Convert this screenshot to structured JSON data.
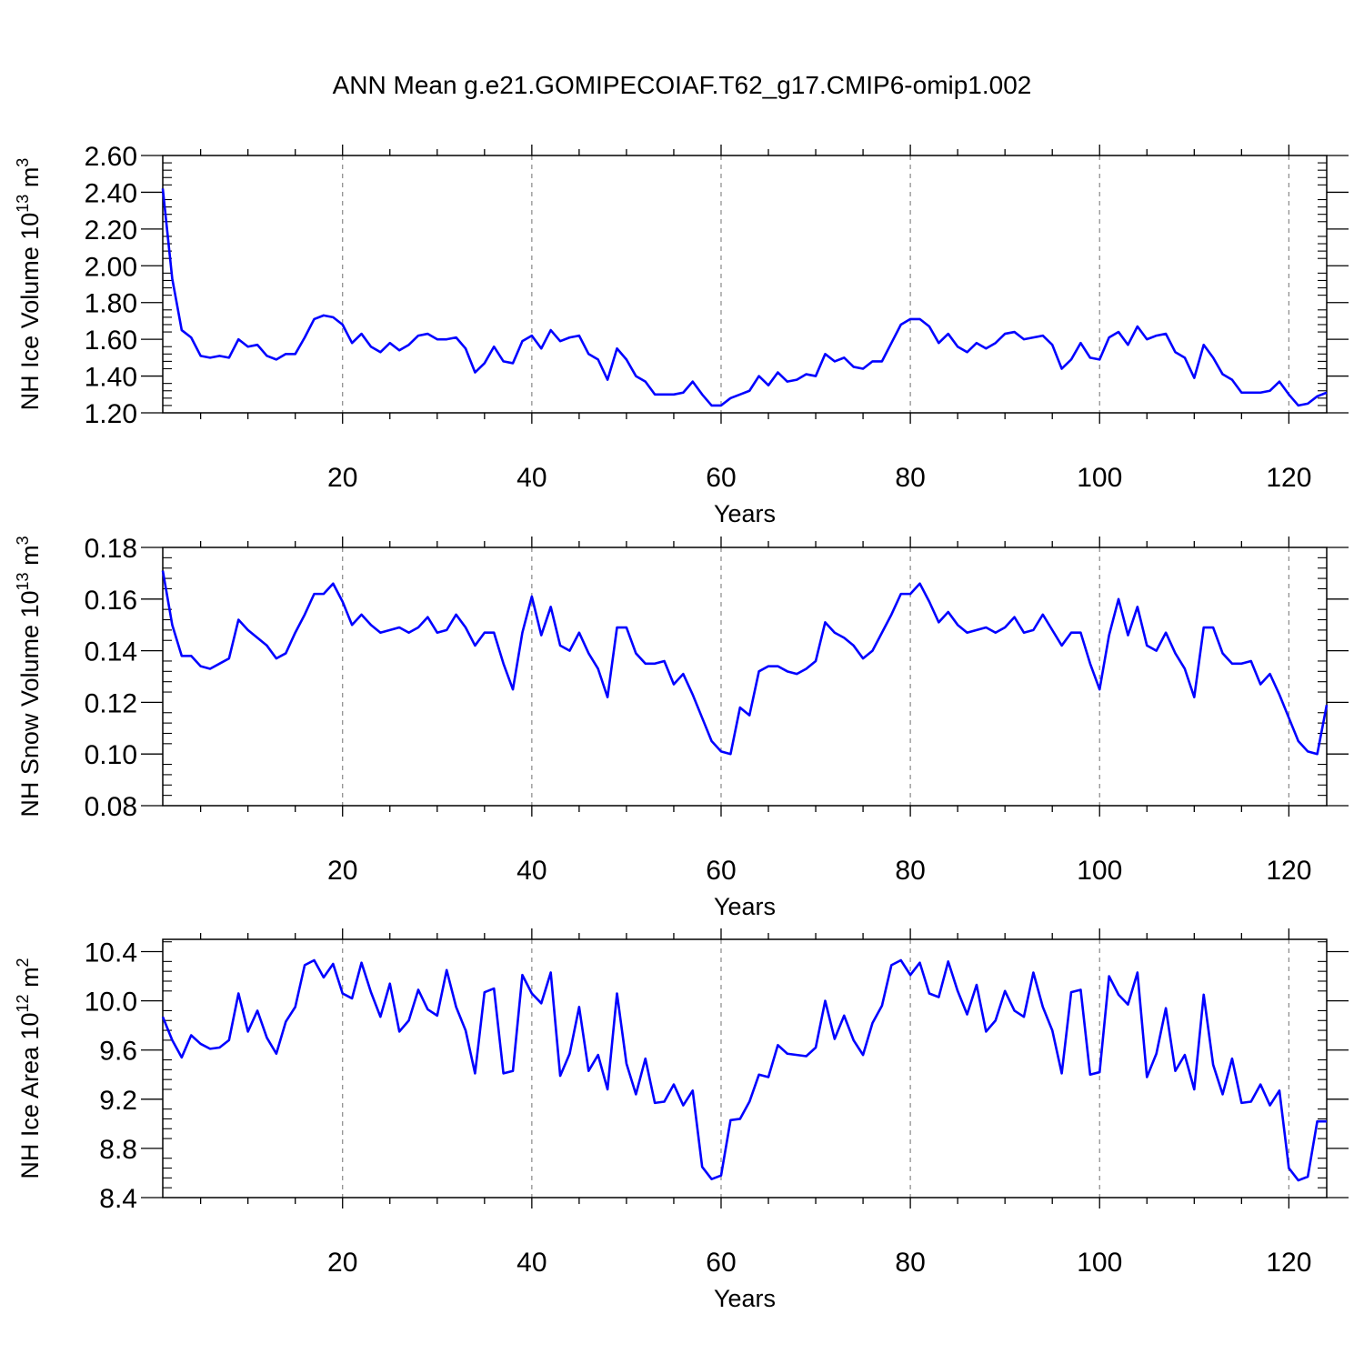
{
  "title": "ANN Mean g.e21.GOMIPECOIAF.T62_g17.CMIP6-omip1.002",
  "colors": {
    "line": "#0000ff",
    "axis": "#000000",
    "grid": "#888888"
  },
  "chart_data": [
    {
      "type": "line",
      "ylabel": "NH Ice Volume",
      "units_base": "10",
      "units_exp": "13",
      "units_unit": "m",
      "units_unit_exp": "3",
      "xlabel": "Years",
      "xlim": [
        1,
        124
      ],
      "ylim": [
        1.2,
        2.6
      ],
      "yticks": [
        "1.20",
        "1.40",
        "1.60",
        "1.80",
        "2.00",
        "2.20",
        "2.40",
        "2.60"
      ],
      "xticks": [
        "20",
        "40",
        "60",
        "80",
        "100",
        "120"
      ],
      "grid": "vertical dashed at x ticks",
      "series": [
        {
          "values": [
            2.42,
            1.93,
            1.65,
            1.61,
            1.51,
            1.5,
            1.51,
            1.5,
            1.6,
            1.56,
            1.57,
            1.51,
            1.49,
            1.52,
            1.52,
            1.61,
            1.71,
            1.73,
            1.72,
            1.68,
            1.58,
            1.63,
            1.56,
            1.53,
            1.58,
            1.54,
            1.57,
            1.62,
            1.63,
            1.6,
            1.6,
            1.61,
            1.55,
            1.42,
            1.47,
            1.56,
            1.48,
            1.47,
            1.59,
            1.62,
            1.55,
            1.65,
            1.59,
            1.61,
            1.62,
            1.52,
            1.49,
            1.38,
            1.55,
            1.49,
            1.4,
            1.37,
            1.3,
            1.3,
            1.3,
            1.31,
            1.37,
            1.3,
            1.24,
            1.24,
            1.28,
            1.3,
            1.32,
            1.4,
            1.35,
            1.42,
            1.37,
            1.38,
            1.41,
            1.4,
            1.52,
            1.48,
            1.5,
            1.45,
            1.44,
            1.48,
            1.48,
            1.58,
            1.68,
            1.71,
            1.71,
            1.67,
            1.58,
            1.63,
            1.56,
            1.53,
            1.58,
            1.55,
            1.58,
            1.63,
            1.64,
            1.6,
            1.61,
            1.62,
            1.57,
            1.44,
            1.49,
            1.58,
            1.5,
            1.49,
            1.61,
            1.64,
            1.57,
            1.67,
            1.6,
            1.62,
            1.63,
            1.53,
            1.5,
            1.39,
            1.57,
            1.5,
            1.41,
            1.38,
            1.31,
            1.31,
            1.31,
            1.32,
            1.37,
            1.3,
            1.24,
            1.25,
            1.29,
            1.31
          ]
        }
      ]
    },
    {
      "type": "line",
      "ylabel": "NH Snow Volume",
      "units_base": "10",
      "units_exp": "13",
      "units_unit": "m",
      "units_unit_exp": "3",
      "xlabel": "Years",
      "xlim": [
        1,
        124
      ],
      "ylim": [
        0.08,
        0.18
      ],
      "yticks": [
        "0.08",
        "0.10",
        "0.12",
        "0.14",
        "0.16",
        "0.18"
      ],
      "xticks": [
        "20",
        "40",
        "60",
        "80",
        "100",
        "120"
      ],
      "grid": "vertical dashed at x ticks",
      "series": [
        {
          "values": [
            0.171,
            0.15,
            0.138,
            0.138,
            0.134,
            0.133,
            0.135,
            0.137,
            0.152,
            0.148,
            0.145,
            0.142,
            0.137,
            0.139,
            0.147,
            0.154,
            0.162,
            0.162,
            0.166,
            0.159,
            0.15,
            0.154,
            0.15,
            0.147,
            0.148,
            0.149,
            0.147,
            0.149,
            0.153,
            0.147,
            0.148,
            0.154,
            0.149,
            0.142,
            0.147,
            0.147,
            0.135,
            0.125,
            0.147,
            0.161,
            0.146,
            0.157,
            0.142,
            0.14,
            0.147,
            0.139,
            0.133,
            0.122,
            0.149,
            0.149,
            0.139,
            0.135,
            0.135,
            0.136,
            0.127,
            0.131,
            0.123,
            0.114,
            0.105,
            0.101,
            0.1,
            0.118,
            0.115,
            0.132,
            0.134,
            0.134,
            0.132,
            0.131,
            0.133,
            0.136,
            0.151,
            0.147,
            0.145,
            0.142,
            0.137,
            0.14,
            0.147,
            0.154,
            0.162,
            0.162,
            0.166,
            0.159,
            0.151,
            0.155,
            0.15,
            0.147,
            0.148,
            0.149,
            0.147,
            0.149,
            0.153,
            0.147,
            0.148,
            0.154,
            0.148,
            0.142,
            0.147,
            0.147,
            0.135,
            0.125,
            0.146,
            0.16,
            0.146,
            0.157,
            0.142,
            0.14,
            0.147,
            0.139,
            0.133,
            0.122,
            0.149,
            0.149,
            0.139,
            0.135,
            0.135,
            0.136,
            0.127,
            0.131,
            0.123,
            0.114,
            0.105,
            0.101,
            0.1,
            0.119
          ]
        }
      ]
    },
    {
      "type": "line",
      "ylabel": "NH Ice Area",
      "units_base": "10",
      "units_exp": "12",
      "units_unit": "m",
      "units_unit_exp": "2",
      "xlabel": "Years",
      "xlim": [
        1,
        124
      ],
      "ylim": [
        8.4,
        10.5
      ],
      "yticks": [
        "8.4",
        "8.8",
        "9.2",
        "9.6",
        "10.0",
        "10.4"
      ],
      "xticks": [
        "20",
        "40",
        "60",
        "80",
        "100",
        "120"
      ],
      "grid": "vertical dashed at x ticks",
      "series": [
        {
          "values": [
            9.87,
            9.68,
            9.54,
            9.72,
            9.65,
            9.61,
            9.62,
            9.68,
            10.06,
            9.75,
            9.92,
            9.7,
            9.57,
            9.83,
            9.95,
            10.29,
            10.33,
            10.19,
            10.3,
            10.06,
            10.02,
            10.31,
            10.07,
            9.87,
            10.14,
            9.75,
            9.84,
            10.09,
            9.93,
            9.88,
            10.25,
            9.95,
            9.76,
            9.41,
            10.07,
            10.1,
            9.41,
            9.43,
            10.21,
            10.06,
            9.98,
            10.23,
            9.39,
            9.57,
            9.95,
            9.43,
            9.56,
            9.28,
            10.06,
            9.49,
            9.24,
            9.53,
            9.17,
            9.18,
            9.32,
            9.15,
            9.27,
            8.65,
            8.55,
            8.58,
            9.03,
            9.04,
            9.18,
            9.4,
            9.38,
            9.64,
            9.57,
            9.56,
            9.55,
            9.62,
            10.0,
            9.69,
            9.88,
            9.68,
            9.56,
            9.82,
            9.96,
            10.29,
            10.33,
            10.21,
            10.31,
            10.06,
            10.03,
            10.32,
            10.08,
            9.89,
            10.13,
            9.75,
            9.84,
            10.08,
            9.92,
            9.87,
            10.23,
            9.95,
            9.76,
            9.41,
            10.07,
            10.09,
            9.4,
            9.42,
            10.2,
            10.05,
            9.97,
            10.23,
            9.38,
            9.57,
            9.94,
            9.43,
            9.56,
            9.28,
            10.05,
            9.48,
            9.24,
            9.53,
            9.17,
            9.18,
            9.32,
            9.15,
            9.27,
            8.64,
            8.54,
            8.57,
            9.02,
            9.02
          ]
        }
      ]
    }
  ]
}
